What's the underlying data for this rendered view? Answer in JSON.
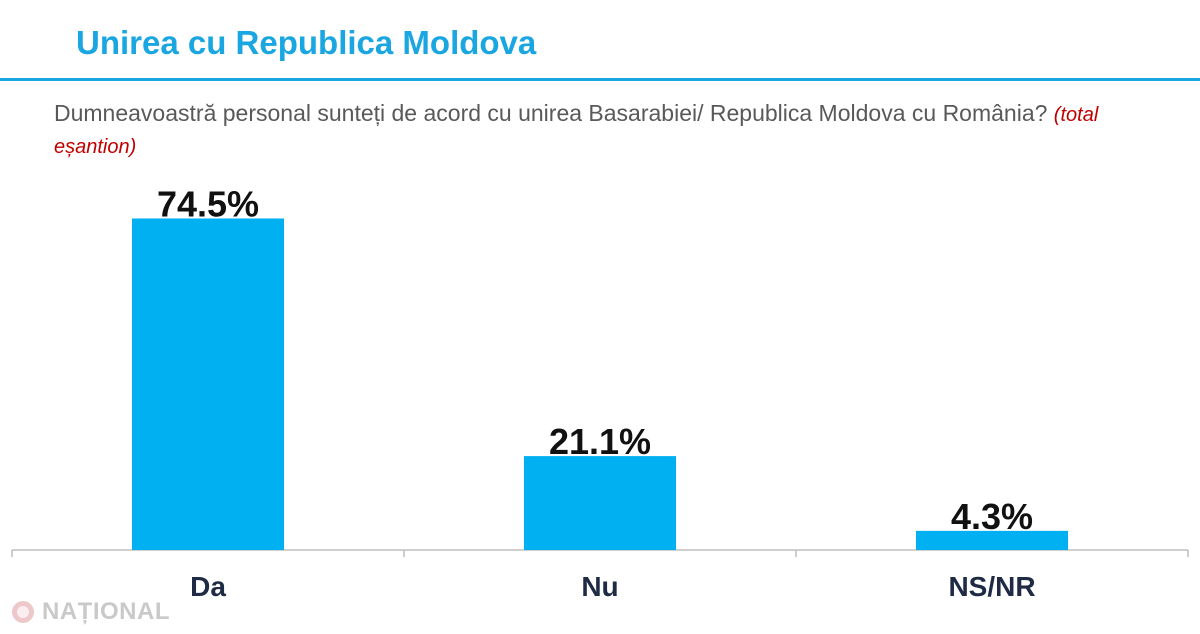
{
  "header": {
    "title": "Unirea cu Republica Moldova"
  },
  "question": {
    "text": "Dumneavoastră personal sunteți de acord cu unirea Basarabiei/ Republica Moldova cu România?",
    "note": "(total eșantion)"
  },
  "watermark": {
    "text": "NAȚIONAL"
  },
  "colors": {
    "accent": "#1aa6e0",
    "bar": "#00b0f0",
    "note": "#c00000"
  },
  "chart_data": {
    "type": "bar",
    "categories": [
      "Da",
      "Nu",
      "NS/NR"
    ],
    "values": [
      74.5,
      21.1,
      4.3
    ],
    "value_labels": [
      "74.5%",
      "21.1%",
      "4.3%"
    ],
    "ylim": [
      0,
      100
    ],
    "grid": false,
    "legend": "none"
  }
}
